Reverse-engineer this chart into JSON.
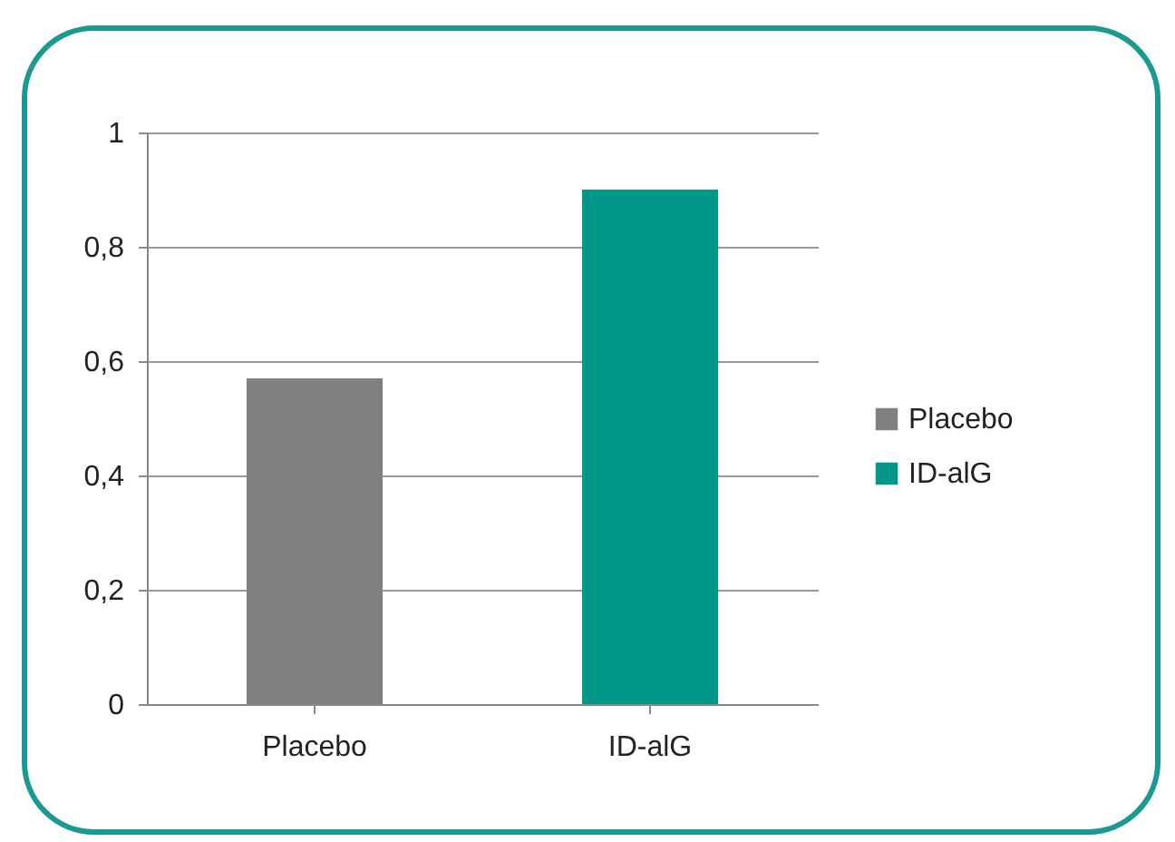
{
  "chart_data": {
    "type": "bar",
    "categories": [
      "Placebo",
      "ID-alG"
    ],
    "series": [
      {
        "name": "Placebo",
        "color": "#808080",
        "values": [
          0.57,
          null
        ]
      },
      {
        "name": "ID-alG",
        "color": "#009688",
        "values": [
          null,
          0.9
        ]
      }
    ],
    "ylim": [
      0,
      1
    ],
    "yticks": [
      0,
      {
        "value": 0.2,
        "label": "0,2"
      },
      {
        "value": 0.4,
        "label": "0,4"
      },
      {
        "value": 0.6,
        "label": "0,6"
      },
      {
        "value": 0.8,
        "label": "0,8"
      },
      1
    ],
    "grid": "y",
    "legend": "right"
  }
}
